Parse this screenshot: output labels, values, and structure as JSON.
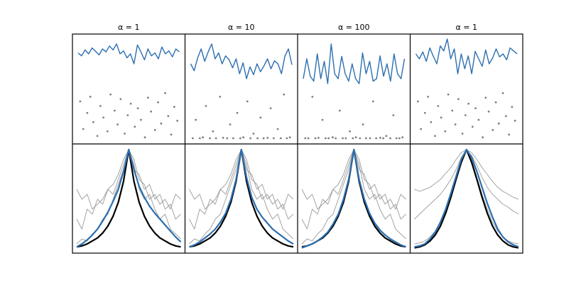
{
  "chart_data": [
    {
      "type": "kernel",
      "title": "α = 1",
      "ylim": [
        0,
        1
      ],
      "signal_color": "#2c6fb0",
      "sample_color": "#7f7f7f",
      "kernel_color": "#000000",
      "estimate_color": "#2c6fb0",
      "draw_color": "#8c8c8c",
      "signal": [
        0.72,
        0.66,
        0.78,
        0.7,
        0.82,
        0.75,
        0.68,
        0.8,
        0.74,
        0.86,
        0.78,
        0.9,
        0.7,
        0.76,
        0.62,
        0.7,
        0.5,
        0.88,
        0.74,
        0.58,
        0.8,
        0.66,
        0.72,
        0.6,
        0.84,
        0.7,
        0.76,
        0.64,
        0.8,
        0.74
      ],
      "samples": {
        "x": [
          0.02,
          0.05,
          0.09,
          0.12,
          0.15,
          0.19,
          0.22,
          0.25,
          0.29,
          0.32,
          0.36,
          0.39,
          0.42,
          0.46,
          0.49,
          0.52,
          0.56,
          0.59,
          0.62,
          0.66,
          0.69,
          0.72,
          0.76,
          0.79,
          0.82,
          0.86,
          0.89,
          0.92,
          0.95,
          0.98
        ],
        "y": [
          0.8,
          0.2,
          0.55,
          0.9,
          0.35,
          0.05,
          0.7,
          0.45,
          0.15,
          0.95,
          0.6,
          0.3,
          0.85,
          0.1,
          0.5,
          0.75,
          0.25,
          0.65,
          0.4,
          0.02,
          0.88,
          0.58,
          0.18,
          0.78,
          0.32,
          0.98,
          0.48,
          0.08,
          0.68,
          0.38
        ]
      },
      "draws": [
        [
          0.3,
          0.2,
          0.4,
          0.35,
          0.5,
          0.45,
          0.6,
          0.55,
          0.7,
          0.85,
          1,
          0.8,
          0.75,
          0.6,
          0.65,
          0.5,
          0.55,
          0.4,
          0.45,
          0.3,
          0.35
        ],
        [
          0.05,
          0.1,
          0.08,
          0.15,
          0.2,
          0.3,
          0.35,
          0.5,
          0.65,
          0.8,
          1,
          0.85,
          0.6,
          0.5,
          0.55,
          0.4,
          0.3,
          0.35,
          0.2,
          0.15,
          0.1
        ],
        [
          0.6,
          0.5,
          0.55,
          0.4,
          0.45,
          0.5,
          0.6,
          0.65,
          0.75,
          0.9,
          1,
          0.9,
          0.7,
          0.65,
          0.5,
          0.55,
          0.45,
          0.5,
          0.4,
          0.55,
          0.5
        ]
      ],
      "kernel": [
        0.02,
        0.03,
        0.05,
        0.08,
        0.11,
        0.16,
        0.23,
        0.33,
        0.47,
        0.68,
        1,
        0.68,
        0.47,
        0.33,
        0.23,
        0.16,
        0.11,
        0.08,
        0.05,
        0.03,
        0.02
      ],
      "estimate": [
        0.02,
        0.05,
        0.09,
        0.14,
        0.2,
        0.28,
        0.37,
        0.48,
        0.6,
        0.78,
        1,
        0.8,
        0.63,
        0.52,
        0.43,
        0.36,
        0.3,
        0.24,
        0.18,
        0.12,
        0.07
      ]
    },
    {
      "type": "kernel",
      "title": "α = 10",
      "ylim": [
        0,
        1
      ],
      "signal_color": "#2c6fb0",
      "sample_color": "#7f7f7f",
      "kernel_color": "#000000",
      "estimate_color": "#2c6fb0",
      "draw_color": "#8c8c8c",
      "signal": [
        0.5,
        0.36,
        0.62,
        0.8,
        0.55,
        0.74,
        0.9,
        0.6,
        0.72,
        0.5,
        0.66,
        0.58,
        0.42,
        0.6,
        0.3,
        0.52,
        0.2,
        0.44,
        0.28,
        0.5,
        0.34,
        0.46,
        0.6,
        0.4,
        0.56,
        0.5,
        0.3,
        0.66,
        0.8,
        0.48
      ],
      "samples": {
        "x": [
          0.02,
          0.05,
          0.09,
          0.12,
          0.15,
          0.19,
          0.22,
          0.25,
          0.29,
          0.32,
          0.36,
          0.39,
          0.42,
          0.46,
          0.49,
          0.52,
          0.56,
          0.59,
          0.62,
          0.66,
          0.69,
          0.72,
          0.76,
          0.79,
          0.82,
          0.86,
          0.89,
          0.92,
          0.95,
          0.98
        ],
        "y": [
          0,
          0.4,
          0,
          0.02,
          0.7,
          0,
          0.15,
          0,
          0.9,
          0.01,
          0,
          0.3,
          0,
          0.55,
          0,
          0.02,
          0.8,
          0,
          0.1,
          0,
          0.45,
          0,
          0.01,
          0.65,
          0,
          0.2,
          0,
          0.95,
          0,
          0.02
        ]
      },
      "draws": [
        [
          0.3,
          0.2,
          0.4,
          0.35,
          0.5,
          0.45,
          0.6,
          0.55,
          0.7,
          0.85,
          1,
          0.8,
          0.75,
          0.6,
          0.65,
          0.5,
          0.55,
          0.4,
          0.45,
          0.3,
          0.35
        ],
        [
          0.05,
          0.1,
          0.08,
          0.15,
          0.2,
          0.3,
          0.35,
          0.5,
          0.65,
          0.8,
          1,
          0.85,
          0.6,
          0.5,
          0.55,
          0.4,
          0.3,
          0.35,
          0.2,
          0.15,
          0.1
        ],
        [
          0.6,
          0.5,
          0.55,
          0.4,
          0.45,
          0.5,
          0.6,
          0.65,
          0.75,
          0.9,
          1,
          0.9,
          0.7,
          0.65,
          0.5,
          0.55,
          0.45,
          0.5,
          0.4,
          0.55,
          0.5
        ]
      ],
      "kernel": [
        0.02,
        0.03,
        0.05,
        0.08,
        0.11,
        0.16,
        0.23,
        0.33,
        0.47,
        0.68,
        1,
        0.68,
        0.47,
        0.33,
        0.23,
        0.16,
        0.11,
        0.08,
        0.05,
        0.03,
        0.02
      ],
      "estimate": [
        0.02,
        0.04,
        0.07,
        0.11,
        0.15,
        0.2,
        0.27,
        0.36,
        0.5,
        0.7,
        1,
        0.72,
        0.52,
        0.4,
        0.32,
        0.26,
        0.2,
        0.16,
        0.12,
        0.08,
        0.05
      ]
    },
    {
      "type": "kernel",
      "title": "α = 100",
      "ylim": [
        0,
        1
      ],
      "signal_color": "#2c6fb0",
      "sample_color": "#7f7f7f",
      "kernel_color": "#000000",
      "estimate_color": "#2c6fb0",
      "draw_color": "#8c8c8c",
      "signal": [
        0.2,
        0.6,
        0.25,
        0.15,
        0.7,
        0.2,
        0.55,
        0.1,
        0.9,
        0.3,
        0.2,
        0.65,
        0.3,
        0.15,
        0.5,
        0.2,
        0.1,
        0.72,
        0.3,
        0.55,
        0.15,
        0.2,
        0.66,
        0.25,
        0.5,
        0.15,
        0.7,
        0.3,
        0.2,
        0.6
      ],
      "samples": {
        "x": [
          0.02,
          0.05,
          0.09,
          0.12,
          0.15,
          0.19,
          0.22,
          0.25,
          0.29,
          0.32,
          0.36,
          0.39,
          0.42,
          0.46,
          0.49,
          0.52,
          0.56,
          0.59,
          0.62,
          0.66,
          0.69,
          0.72,
          0.76,
          0.79,
          0.82,
          0.86,
          0.89,
          0.92,
          0.95,
          0.98
        ],
        "y": [
          0,
          0,
          0.9,
          0,
          0.01,
          0.4,
          0,
          0,
          0.02,
          0,
          0.6,
          0,
          0,
          0.15,
          0,
          0.02,
          0,
          0.3,
          0,
          0,
          0.8,
          0,
          0.01,
          0,
          0.05,
          0,
          0.5,
          0,
          0,
          0.02
        ]
      },
      "draws": [
        [
          0.3,
          0.2,
          0.4,
          0.35,
          0.5,
          0.45,
          0.6,
          0.55,
          0.7,
          0.85,
          1,
          0.8,
          0.75,
          0.6,
          0.65,
          0.5,
          0.55,
          0.4,
          0.45,
          0.3,
          0.35
        ],
        [
          0.05,
          0.1,
          0.08,
          0.15,
          0.2,
          0.3,
          0.35,
          0.5,
          0.65,
          0.8,
          1,
          0.85,
          0.6,
          0.5,
          0.55,
          0.4,
          0.3,
          0.35,
          0.2,
          0.15,
          0.1
        ],
        [
          0.6,
          0.5,
          0.55,
          0.4,
          0.45,
          0.5,
          0.6,
          0.65,
          0.75,
          0.9,
          1,
          0.9,
          0.7,
          0.65,
          0.5,
          0.55,
          0.45,
          0.5,
          0.4,
          0.55,
          0.5
        ]
      ],
      "kernel": [
        0.02,
        0.03,
        0.05,
        0.08,
        0.11,
        0.16,
        0.23,
        0.33,
        0.47,
        0.68,
        1,
        0.68,
        0.47,
        0.33,
        0.23,
        0.16,
        0.11,
        0.08,
        0.05,
        0.03,
        0.02
      ],
      "estimate": [
        0.01,
        0.03,
        0.05,
        0.08,
        0.12,
        0.17,
        0.25,
        0.35,
        0.5,
        0.7,
        1,
        0.7,
        0.5,
        0.36,
        0.26,
        0.19,
        0.14,
        0.1,
        0.07,
        0.04,
        0.02
      ]
    },
    {
      "type": "kernel",
      "title": "α = 1",
      "ylim": [
        0,
        1
      ],
      "signal_color": "#2c6fb0",
      "sample_color": "#7f7f7f",
      "kernel_color": "#000000",
      "estimate_color": "#2c6fb0",
      "draw_color": "#8c8c8c",
      "signal": [
        0.7,
        0.6,
        0.74,
        0.55,
        0.82,
        0.65,
        0.5,
        0.86,
        0.76,
        1.0,
        0.6,
        0.8,
        0.3,
        0.7,
        0.4,
        0.66,
        0.3,
        0.75,
        0.6,
        0.45,
        0.78,
        0.5,
        0.62,
        0.8,
        0.64,
        0.7,
        0.58,
        0.82,
        0.76,
        0.7
      ],
      "samples": {
        "x": [
          0.02,
          0.05,
          0.09,
          0.12,
          0.15,
          0.19,
          0.22,
          0.25,
          0.29,
          0.32,
          0.36,
          0.39,
          0.42,
          0.46,
          0.49,
          0.52,
          0.56,
          0.59,
          0.62,
          0.66,
          0.69,
          0.72,
          0.76,
          0.79,
          0.82,
          0.86,
          0.89,
          0.92,
          0.95,
          0.98
        ],
        "y": [
          0.8,
          0.2,
          0.55,
          0.9,
          0.35,
          0.05,
          0.7,
          0.45,
          0.15,
          0.95,
          0.6,
          0.3,
          0.85,
          0.1,
          0.5,
          0.75,
          0.25,
          0.65,
          0.4,
          0.02,
          0.88,
          0.58,
          0.18,
          0.78,
          0.32,
          0.98,
          0.48,
          0.08,
          0.68,
          0.38
        ]
      },
      "draws": [
        [
          0.3,
          0.35,
          0.4,
          0.45,
          0.5,
          0.55,
          0.62,
          0.7,
          0.8,
          0.92,
          1,
          0.94,
          0.84,
          0.72,
          0.62,
          0.55,
          0.5,
          0.45,
          0.42,
          0.38,
          0.35
        ],
        [
          0.05,
          0.06,
          0.08,
          0.12,
          0.18,
          0.27,
          0.4,
          0.55,
          0.72,
          0.9,
          1,
          0.9,
          0.72,
          0.55,
          0.4,
          0.27,
          0.18,
          0.12,
          0.08,
          0.06,
          0.05
        ],
        [
          0.6,
          0.58,
          0.6,
          0.62,
          0.66,
          0.7,
          0.76,
          0.82,
          0.9,
          0.97,
          1,
          0.97,
          0.9,
          0.82,
          0.75,
          0.68,
          0.62,
          0.58,
          0.55,
          0.52,
          0.5
        ]
      ],
      "kernel": [
        0.01,
        0.02,
        0.04,
        0.08,
        0.14,
        0.23,
        0.36,
        0.52,
        0.7,
        0.87,
        1,
        0.87,
        0.7,
        0.52,
        0.36,
        0.23,
        0.14,
        0.08,
        0.04,
        0.02,
        0.01
      ],
      "estimate": [
        0.02,
        0.03,
        0.05,
        0.1,
        0.17,
        0.27,
        0.4,
        0.56,
        0.73,
        0.9,
        1,
        0.92,
        0.78,
        0.62,
        0.46,
        0.32,
        0.2,
        0.12,
        0.07,
        0.04,
        0.02
      ]
    }
  ]
}
